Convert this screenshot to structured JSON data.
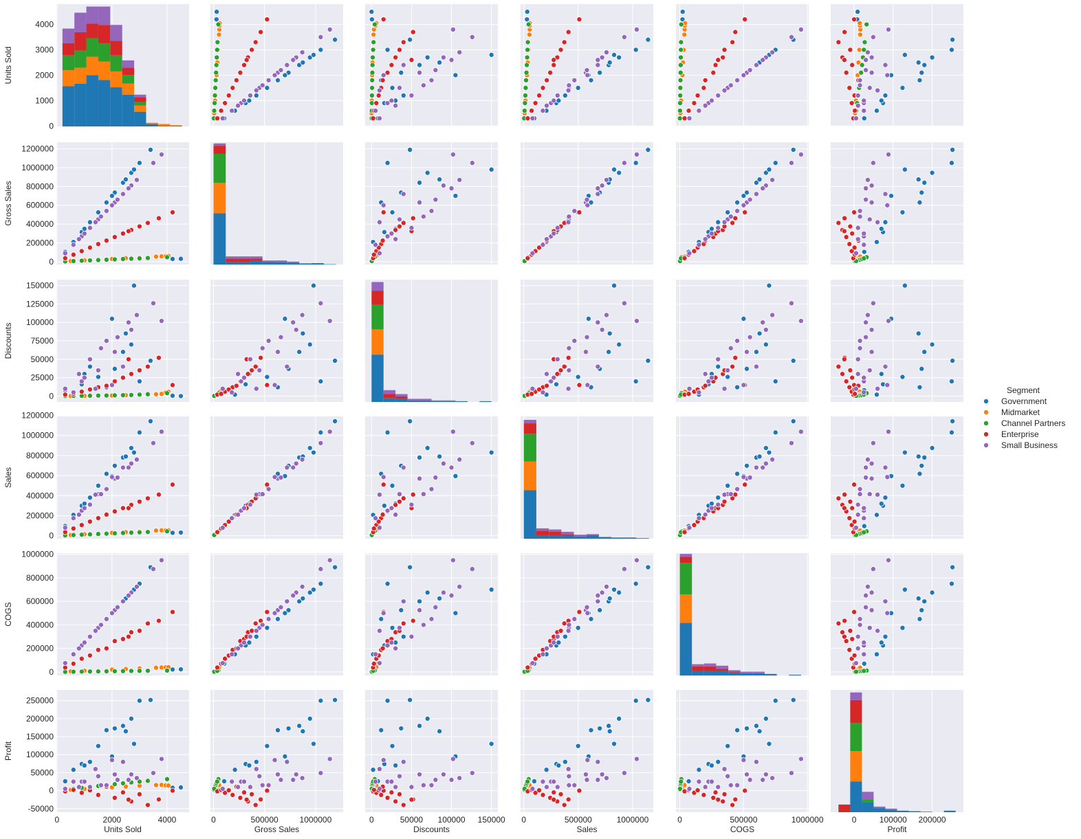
{
  "chart_data": {
    "type": "scatter",
    "subtype": "pairplot",
    "variables": [
      "Units Sold",
      "Gross Sales",
      "Discounts",
      "Sales",
      "COGS",
      "Profit"
    ],
    "ranges": {
      "Units Sold": [
        -20,
        4800
      ],
      "Gross Sales": [
        -30000,
        1270000
      ],
      "Discounts": [
        -8000,
        158000
      ],
      "Sales": [
        -30000,
        1190000
      ],
      "COGS": [
        -30000,
        1010000
      ],
      "Profit": [
        -60000,
        280000
      ]
    },
    "diag_ylim": {
      "Units Sold": [
        0,
        1000
      ],
      "Gross Sales": [
        0,
        1050
      ],
      "Discounts": [
        0,
        155
      ],
      "Sales": [
        0,
        1060
      ],
      "COGS": [
        0,
        815
      ],
      "Profit": [
        0,
        240
      ]
    },
    "ticks": {
      "Units Sold": [
        "0",
        "2000",
        "4000"
      ],
      "Gross Sales": [
        "0",
        "500000",
        "1000000"
      ],
      "Discounts": [
        "0",
        "50000",
        "100000",
        "150000"
      ],
      "Sales": [
        "0",
        "500000",
        "1000000"
      ],
      "COGS": [
        "0",
        "500000",
        "1000000"
      ],
      "Profit": [
        "0",
        "100000",
        "200000"
      ]
    },
    "yticks": {
      "Units Sold": [
        "0",
        "1000",
        "2000",
        "3000",
        "4000"
      ],
      "Gross Sales": [
        "0",
        "200000",
        "400000",
        "600000",
        "800000",
        "1000000",
        "1200000"
      ],
      "Discounts": [
        "0",
        "25000",
        "50000",
        "75000",
        "100000",
        "125000",
        "150000"
      ],
      "Sales": [
        "0",
        "200000",
        "400000",
        "600000",
        "800000",
        "1000000",
        "1200000"
      ],
      "COGS": [
        "0",
        "200000",
        "400000",
        "600000",
        "800000",
        "1000000"
      ],
      "Profit": [
        "-50000",
        "0",
        "50000",
        "100000",
        "150000",
        "200000",
        "250000"
      ]
    },
    "hue": "Segment",
    "legend": {
      "title": "Segment",
      "placement": "right",
      "entries": [
        "Government",
        "Midmarket",
        "Channel Partners",
        "Enterprise",
        "Small Business"
      ]
    },
    "colors": {
      "Government": "#1f77b4",
      "Midmarket": "#ff7f0e",
      "Channel Partners": "#2ca02c",
      "Enterprise": "#d62728",
      "Small Business": "#9467bd"
    },
    "background": "#eaeaf2",
    "grid": true,
    "points": {
      "Government": [
        [
          300,
          105000,
          8000,
          96000,
          70000,
          26000
        ],
        [
          900,
          315000,
          16000,
          299000,
          225000,
          74000
        ],
        [
          1500,
          525000,
          26000,
          499000,
          375000,
          124000
        ],
        [
          2100,
          735000,
          37000,
          698000,
          525000,
          173000
        ],
        [
          2700,
          945000,
          70000,
          875000,
          675000,
          200000
        ],
        [
          3000,
          1050000,
          20000,
          1030000,
          750000,
          250000
        ],
        [
          3400,
          1190000,
          48000,
          1142000,
          890000,
          252000
        ],
        [
          1200,
          420000,
          40000,
          380000,
          300000,
          80000
        ],
        [
          2400,
          840000,
          60000,
          780000,
          600000,
          180000
        ],
        [
          1800,
          630000,
          12000,
          618000,
          450000,
          168000
        ],
        [
          600,
          210000,
          2000,
          208000,
          150000,
          58000
        ],
        [
          2000,
          700000,
          105000,
          595000,
          500000,
          95000
        ],
        [
          2800,
          980000,
          150000,
          830000,
          700000,
          130000
        ],
        [
          1000,
          350000,
          30000,
          320000,
          250000,
          70000
        ],
        [
          2500,
          875000,
          85000,
          790000,
          625000,
          165000
        ],
        [
          4500,
          31500,
          0,
          31500,
          22500,
          9000
        ],
        [
          4200,
          29400,
          500,
          28900,
          21000,
          7900
        ]
      ],
      "Midmarket": [
        [
          1000,
          15000,
          300,
          14700,
          10000,
          4700
        ],
        [
          2000,
          30000,
          800,
          29200,
          20000,
          9200
        ],
        [
          3000,
          45000,
          1500,
          43500,
          30000,
          13500
        ],
        [
          3800,
          57000,
          3000,
          54000,
          38000,
          16000
        ],
        [
          3950,
          59250,
          5000,
          54250,
          39500,
          14750
        ],
        [
          4050,
          60750,
          6000,
          54750,
          40500,
          14250
        ],
        [
          500,
          7500,
          100,
          7400,
          5000,
          2400
        ],
        [
          2500,
          37500,
          1200,
          36300,
          25000,
          11300
        ],
        [
          3600,
          54000,
          2500,
          51500,
          36000,
          15500
        ]
      ],
      "Channel Partners": [
        [
          300,
          3600,
          200,
          3400,
          900,
          2500
        ],
        [
          900,
          10800,
          400,
          10400,
          2700,
          7700
        ],
        [
          1500,
          18000,
          700,
          17300,
          4500,
          12800
        ],
        [
          2100,
          25200,
          1000,
          24200,
          6300,
          17900
        ],
        [
          2700,
          32400,
          1500,
          30900,
          8100,
          22800
        ],
        [
          3300,
          39600,
          2500,
          37100,
          9900,
          27200
        ],
        [
          4000,
          48000,
          4000,
          44000,
          12000,
          32000
        ],
        [
          1200,
          14400,
          500,
          13900,
          3600,
          10300
        ],
        [
          1800,
          21600,
          800,
          20800,
          5400,
          15400
        ],
        [
          2400,
          28800,
          1200,
          27600,
          7200,
          20400
        ],
        [
          600,
          7200,
          300,
          6900,
          1800,
          5100
        ],
        [
          3000,
          36000,
          2000,
          34000,
          9000,
          25000
        ]
      ],
      "Enterprise": [
        [
          300,
          37500,
          2000,
          35500,
          37500,
          -2000
        ],
        [
          900,
          112500,
          6000,
          106500,
          112500,
          -6000
        ],
        [
          1500,
          187500,
          12000,
          175500,
          187500,
          -12000
        ],
        [
          2100,
          262500,
          20000,
          242500,
          262500,
          -20000
        ],
        [
          2700,
          337500,
          30000,
          307500,
          337500,
          -30000
        ],
        [
          3300,
          412500,
          40000,
          372500,
          412500,
          -40000
        ],
        [
          3700,
          462500,
          52000,
          410500,
          435000,
          -24500
        ],
        [
          4200,
          525000,
          15000,
          510000,
          510000,
          0
        ],
        [
          1200,
          150000,
          9000,
          141000,
          140000,
          1000
        ],
        [
          1800,
          225000,
          14000,
          211000,
          200000,
          11000
        ],
        [
          2400,
          300000,
          25000,
          275000,
          280000,
          -5000
        ],
        [
          600,
          75000,
          3000,
          72000,
          70000,
          2000
        ],
        [
          3000,
          375000,
          35000,
          340000,
          350000,
          -10000
        ],
        [
          2600,
          325000,
          50000,
          275000,
          300000,
          -25000
        ]
      ],
      "Small Business": [
        [
          300,
          90000,
          10000,
          80000,
          75000,
          5000
        ],
        [
          900,
          270000,
          20000,
          250000,
          225000,
          25000
        ],
        [
          1500,
          450000,
          35000,
          415000,
          375000,
          40000
        ],
        [
          2100,
          630000,
          60000,
          570000,
          525000,
          45000
        ],
        [
          2700,
          810000,
          90000,
          720000,
          675000,
          45000
        ],
        [
          2900,
          870000,
          110000,
          760000,
          725000,
          35000
        ],
        [
          3500,
          1050000,
          126000,
          924000,
          875000,
          49000
        ],
        [
          3800,
          1140000,
          102000,
          1038000,
          950000,
          88000
        ],
        [
          1200,
          360000,
          50000,
          310000,
          300000,
          10000
        ],
        [
          1800,
          540000,
          75000,
          465000,
          450000,
          15000
        ],
        [
          2400,
          720000,
          40000,
          680000,
          600000,
          80000
        ],
        [
          600,
          180000,
          5000,
          175000,
          150000,
          25000
        ],
        [
          1000,
          300000,
          25000,
          275000,
          250000,
          25000
        ],
        [
          2000,
          600000,
          15000,
          585000,
          500000,
          85000
        ],
        [
          1600,
          480000,
          65000,
          415000,
          400000,
          15000
        ],
        [
          2600,
          780000,
          100000,
          680000,
          650000,
          30000
        ],
        [
          800,
          240000,
          30000,
          210000,
          200000,
          10000
        ],
        [
          1400,
          420000,
          10000,
          410000,
          350000,
          60000
        ],
        [
          2200,
          660000,
          80000,
          580000,
          550000,
          30000
        ]
      ]
    },
    "histograms": {
      "Units Sold": {
        "edges": [
          200,
          634,
          1068,
          1502,
          1936,
          2370,
          2804,
          3238,
          3672,
          4106,
          4540
        ],
        "counts": {
          "Government": [
            330,
            350,
            420,
            380,
            320,
            260,
            120,
            20,
            5,
            5
          ],
          "Midmarket": [
            130,
            130,
            150,
            150,
            130,
            90,
            50,
            10,
            15,
            5
          ],
          "Channel Partners": [
            120,
            140,
            150,
            150,
            130,
            70,
            30,
            0,
            0,
            0
          ],
          "Enterprise": [
            100,
            150,
            120,
            150,
            120,
            60,
            40,
            0,
            0,
            0
          ],
          "Small Business": [
            120,
            160,
            140,
            150,
            130,
            60,
            20,
            0,
            0,
            0
          ]
        }
      },
      "Gross Sales": {
        "edges": [
          0,
          120000,
          240000,
          360000,
          480000,
          600000,
          720000,
          840000,
          960000,
          1080000,
          1200000
        ],
        "counts": {
          "Government": [
            440,
            20,
            20,
            30,
            20,
            20,
            15,
            10,
            12,
            3
          ],
          "Midmarket": [
            260,
            0,
            0,
            0,
            0,
            0,
            0,
            0,
            0,
            0
          ],
          "Channel Partners": [
            250,
            0,
            0,
            0,
            0,
            0,
            0,
            0,
            0,
            0
          ],
          "Enterprise": [
            70,
            30,
            30,
            20,
            5,
            0,
            0,
            0,
            0,
            0
          ],
          "Small Business": [
            20,
            20,
            20,
            20,
            10,
            15,
            10,
            0,
            0,
            0
          ]
        }
      },
      "Discounts": {
        "edges": [
          0,
          15000,
          30000,
          45000,
          60000,
          75000,
          90000,
          105000,
          120000,
          135000,
          150000
        ],
        "counts": {
          "Government": [
            60,
            5,
            4,
            2,
            2,
            1,
            1,
            1,
            0,
            1
          ],
          "Midmarket": [
            32,
            0,
            0,
            0,
            0,
            0,
            0,
            0,
            0,
            0
          ],
          "Channel Partners": [
            31,
            0,
            0,
            0,
            0,
            0,
            0,
            0,
            0,
            0
          ],
          "Enterprise": [
            18,
            5,
            3,
            0,
            0,
            0,
            0,
            0,
            0,
            0
          ],
          "Small Business": [
            11,
            5,
            3,
            2,
            2,
            1,
            1,
            0,
            0,
            0
          ]
        }
      },
      "Sales": {
        "edges": [
          0,
          115000,
          230000,
          345000,
          460000,
          575000,
          690000,
          805000,
          920000,
          1035000,
          1150000
        ],
        "counts": {
          "Government": [
            420,
            30,
            30,
            30,
            20,
            30,
            15,
            10,
            10,
            5
          ],
          "Midmarket": [
            250,
            0,
            0,
            0,
            0,
            0,
            0,
            0,
            0,
            0
          ],
          "Channel Partners": [
            240,
            0,
            0,
            0,
            0,
            0,
            0,
            0,
            0,
            0
          ],
          "Enterprise": [
            90,
            40,
            30,
            10,
            0,
            0,
            0,
            0,
            0,
            0
          ],
          "Small Business": [
            30,
            20,
            20,
            20,
            15,
            10,
            0,
            0,
            0,
            0
          ]
        }
      },
      "COGS": {
        "edges": [
          0,
          95000,
          190000,
          285000,
          380000,
          475000,
          570000,
          665000,
          760000,
          855000,
          950000
        ],
        "counts": {
          "Government": [
            350,
            30,
            30,
            30,
            20,
            15,
            15,
            10,
            0,
            5
          ],
          "Midmarket": [
            190,
            0,
            0,
            0,
            0,
            0,
            0,
            0,
            0,
            0
          ],
          "Channel Partners": [
            210,
            0,
            0,
            0,
            0,
            0,
            0,
            0,
            0,
            0
          ],
          "Enterprise": [
            40,
            30,
            30,
            15,
            5,
            0,
            0,
            0,
            0,
            0
          ],
          "Small Business": [
            20,
            15,
            20,
            20,
            10,
            10,
            10,
            0,
            0,
            0
          ]
        }
      },
      "Profit": {
        "edges": [
          -40000,
          -10000,
          20000,
          50000,
          80000,
          110000,
          140000,
          170000,
          200000,
          230000,
          260000
        ],
        "counts": {
          "Government": [
            0,
            60,
            20,
            8,
            5,
            3,
            2,
            1,
            0,
            3
          ],
          "Midmarket": [
            0,
            60,
            0,
            0,
            0,
            0,
            0,
            0,
            0,
            0
          ],
          "Channel Partners": [
            0,
            55,
            5,
            0,
            0,
            0,
            0,
            0,
            0,
            0
          ],
          "Enterprise": [
            15,
            45,
            0,
            0,
            0,
            0,
            0,
            0,
            0,
            0
          ],
          "Small Business": [
            0,
            15,
            15,
            3,
            2,
            0,
            0,
            0,
            0,
            0
          ]
        }
      }
    }
  }
}
